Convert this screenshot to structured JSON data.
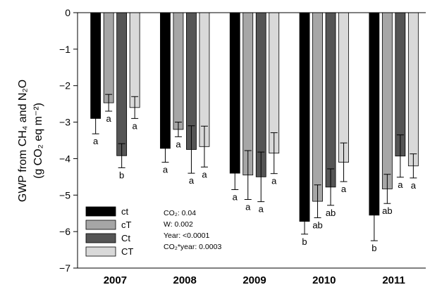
{
  "chart_data": {
    "type": "bar",
    "categories": [
      "2007",
      "2008",
      "2009",
      "2010",
      "2011"
    ],
    "ylabel": "GWP from CH₄ and N₂O (g CO₂ eq m⁻²)",
    "ylabel_line1": "GWP from CH₄ and N₂O",
    "ylabel_line2": "(g CO₂ eq m⁻²)",
    "ylim": [
      -7,
      0
    ],
    "yticks": [
      0,
      -1,
      -2,
      -3,
      -4,
      -5,
      -6,
      -7
    ],
    "ytick_labels": [
      "0",
      "−1",
      "−2",
      "−3",
      "−4",
      "−5",
      "−6",
      "−7"
    ],
    "legend_position": "bottom-left",
    "series": [
      {
        "name": "ct",
        "color": "#000000",
        "values": [
          -2.9,
          -3.72,
          -4.4,
          -5.72,
          -5.55
        ],
        "errors": [
          0.42,
          0.38,
          0.45,
          0.35,
          0.7
        ],
        "letters": [
          "a",
          "a",
          "a",
          "b",
          "b"
        ]
      },
      {
        "name": "cT",
        "color": "#a6a6a6",
        "values": [
          -2.47,
          -3.2,
          -4.45,
          -5.17,
          -4.83
        ],
        "errors": [
          0.23,
          0.2,
          0.67,
          0.45,
          0.4
        ],
        "letters": [
          "a",
          "a",
          "a",
          "ab",
          "ab"
        ]
      },
      {
        "name": "Ct",
        "color": "#555555",
        "values": [
          -3.92,
          -3.75,
          -4.5,
          -4.78,
          -3.93
        ],
        "errors": [
          0.33,
          0.65,
          0.68,
          0.5,
          0.58
        ],
        "letters": [
          "b",
          "a",
          "a",
          "ab",
          "a"
        ]
      },
      {
        "name": "CT",
        "color": "#d9d9d9",
        "values": [
          -2.6,
          -3.67,
          -3.85,
          -4.1,
          -4.2
        ],
        "errors": [
          0.3,
          0.56,
          0.56,
          0.53,
          0.33
        ],
        "letters": [
          "a",
          "a",
          "a",
          "a",
          "a"
        ]
      }
    ],
    "annotations": [
      "CO₂: 0.04",
      "W: 0.002",
      "Year: <0.0001",
      "CO₂*year: 0.0003"
    ]
  }
}
